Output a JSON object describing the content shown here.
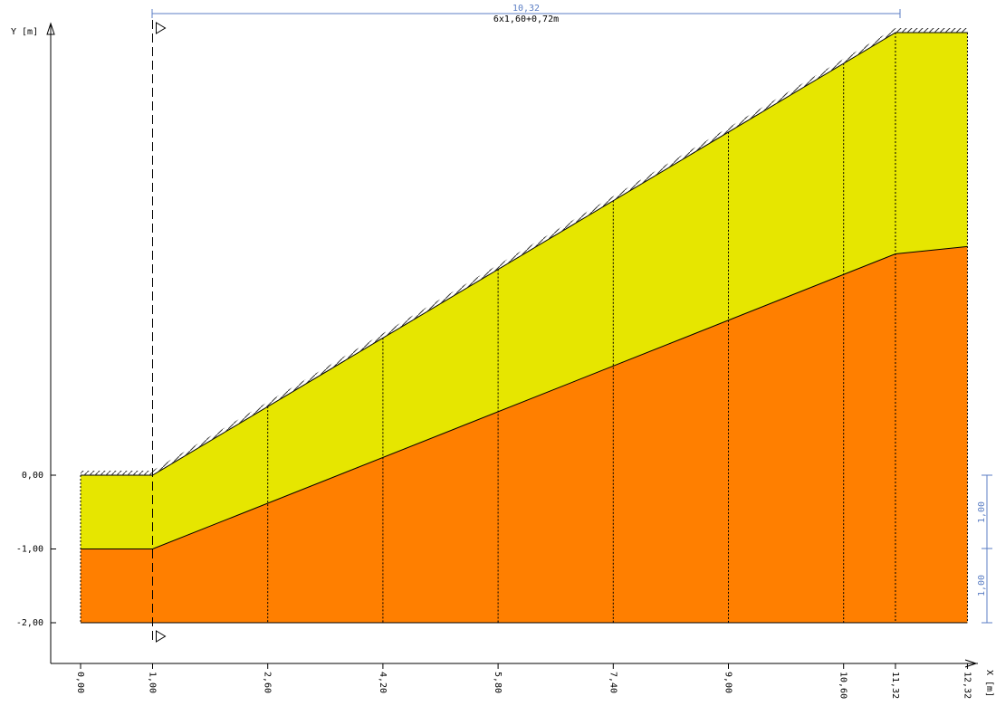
{
  "axes": {
    "y_label": "Y [m]",
    "x_label": "X [m]",
    "y_ticks": [
      "0,00",
      "-1,00",
      "-2,00"
    ],
    "x_ticks": [
      "0,00",
      "1,00",
      "2,60",
      "4,20",
      "5,80",
      "7,40",
      "9,00",
      "10,60",
      "11,32",
      "12,32"
    ]
  },
  "dimensions": {
    "top_total": "10,32",
    "top_formula": "6x1,60+0,72m",
    "right_upper": "1,00",
    "right_lower": "1,00"
  },
  "colors": {
    "upper_layer": "#e6e600",
    "lower_layer": "#ff7f00",
    "dimension_line": "#5b7ec4",
    "outline": "#000000"
  },
  "chart_data": {
    "type": "cross-section",
    "x_ticks": [
      0.0,
      1.0,
      2.6,
      4.2,
      5.8,
      7.4,
      9.0,
      10.6,
      11.32,
      12.32
    ],
    "y_ticks": [
      0.0,
      -1.0,
      -2.0
    ],
    "terrain_surface": [
      [
        0.0,
        0.0
      ],
      [
        1.0,
        0.0
      ],
      [
        11.32,
        6.0
      ],
      [
        12.32,
        6.0
      ]
    ],
    "layer_interface": [
      [
        0.0,
        -1.0
      ],
      [
        1.0,
        -1.0
      ],
      [
        11.32,
        3.0
      ],
      [
        12.32,
        3.1
      ]
    ],
    "base": -2.0,
    "section_lines_x": [
      2.6,
      4.2,
      5.8,
      7.4,
      9.0,
      10.6,
      11.32
    ],
    "cut_line_x": 1.0
  }
}
